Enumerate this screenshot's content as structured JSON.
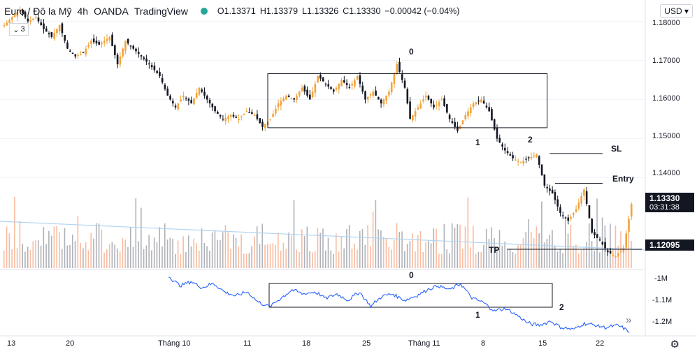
{
  "header": {
    "symbol": "Euro / Đô la Mỹ",
    "interval": "4h",
    "broker": "OANDA",
    "platform": "TradingView",
    "open": "O1.13371",
    "high": "H1.13379",
    "low": "L1.13326",
    "close": "C1.13330",
    "change": "−0.00042 (−0.04%)",
    "indicator_count": "3",
    "currency": "USD",
    "currency_caret": "▾"
  },
  "colors": {
    "up": "#f2a33a",
    "down": "#131722",
    "indicator": "#2962ff",
    "volume_up": "#f4a582",
    "volume_down": "#9598a1",
    "ma": "#b3d4f0",
    "price_tag": "#131722"
  },
  "price_axis": {
    "labels": [
      "1.18000",
      "1.17000",
      "1.16000",
      "1.15000",
      "1.14000"
    ],
    "last_price": "1.13330",
    "countdown": "03:31:38",
    "tp_price": "1.12095"
  },
  "indicator_axis": {
    "labels": [
      "-1M",
      "-1.1M",
      "-1.2M"
    ]
  },
  "time_axis": {
    "labels": [
      "13",
      "20",
      "Tháng 10",
      "11",
      "18",
      "25",
      "Tháng 11",
      "8",
      "15",
      "22"
    ]
  },
  "annotations": {
    "price_0": "0",
    "price_1": "1",
    "price_2": "2",
    "sl": "SL",
    "entry": "Entry",
    "tp": "TP",
    "ind_0": "0",
    "ind_1": "1",
    "ind_2": "2"
  },
  "chart_data": {
    "type": "candlestick",
    "title": "Euro / Đô la Mỹ · 4h · OANDA",
    "ylim": [
      1.118,
      1.184
    ],
    "levels": {
      "sl": 1.1462,
      "entry": 1.1386,
      "tp": 1.121,
      "box_top": 1.1666,
      "box_bottom": 1.1528
    },
    "waypoints": [
      [
        0,
        1.179
      ],
      [
        3,
        1.181
      ],
      [
        6,
        1.183
      ],
      [
        9,
        1.18
      ],
      [
        12,
        1.181
      ],
      [
        15,
        1.178
      ],
      [
        18,
        1.176
      ],
      [
        21,
        1.179
      ],
      [
        24,
        1.173
      ],
      [
        27,
        1.171
      ],
      [
        30,
        1.172
      ],
      [
        33,
        1.175
      ],
      [
        36,
        1.174
      ],
      [
        40,
        1.176
      ],
      [
        43,
        1.169
      ],
      [
        46,
        1.175
      ],
      [
        49,
        1.173
      ],
      [
        52,
        1.171
      ],
      [
        55,
        1.169
      ],
      [
        59,
        1.166
      ],
      [
        62,
        1.161
      ],
      [
        65,
        1.158
      ],
      [
        68,
        1.161
      ],
      [
        71,
        1.159
      ],
      [
        74,
        1.163
      ],
      [
        77,
        1.16
      ],
      [
        80,
        1.157
      ],
      [
        83,
        1.155
      ],
      [
        86,
        1.156
      ],
      [
        89,
        1.155
      ],
      [
        92,
        1.157
      ],
      [
        95,
        1.156
      ],
      [
        98,
        1.153
      ],
      [
        101,
        1.155
      ],
      [
        104,
        1.159
      ],
      [
        107,
        1.161
      ],
      [
        110,
        1.16
      ],
      [
        113,
        1.163
      ],
      [
        116,
        1.16
      ],
      [
        119,
        1.166
      ],
      [
        122,
        1.164
      ],
      [
        125,
        1.162
      ],
      [
        128,
        1.165
      ],
      [
        131,
        1.163
      ],
      [
        134,
        1.166
      ],
      [
        137,
        1.16
      ],
      [
        140,
        1.162
      ],
      [
        143,
        1.159
      ],
      [
        146,
        1.162
      ],
      [
        149,
        1.169
      ],
      [
        152,
        1.163
      ],
      [
        154,
        1.155
      ],
      [
        157,
        1.158
      ],
      [
        160,
        1.161
      ],
      [
        163,
        1.158
      ],
      [
        166,
        1.16
      ],
      [
        169,
        1.155
      ],
      [
        172,
        1.152
      ],
      [
        175,
        1.156
      ],
      [
        178,
        1.159
      ],
      [
        181,
        1.16
      ],
      [
        184,
        1.157
      ],
      [
        187,
        1.15
      ],
      [
        190,
        1.147
      ],
      [
        193,
        1.145
      ],
      [
        196,
        1.144
      ],
      [
        199,
        1.145
      ],
      [
        202,
        1.146
      ],
      [
        205,
        1.138
      ],
      [
        208,
        1.136
      ],
      [
        211,
        1.131
      ],
      [
        214,
        1.129
      ],
      [
        217,
        1.132
      ],
      [
        220,
        1.137
      ],
      [
        223,
        1.126
      ],
      [
        226,
        1.124
      ],
      [
        229,
        1.121
      ],
      [
        232,
        1.12
      ],
      [
        235,
        1.122
      ],
      [
        238,
        1.1333
      ]
    ],
    "indicator": {
      "name": "",
      "ylim": [
        -1.26,
        -0.96
      ],
      "waypoints": [
        [
          0,
          -0.985
        ],
        [
          4,
          -1.03
        ],
        [
          8,
          -1.01
        ],
        [
          12,
          -1.04
        ],
        [
          16,
          -1.02
        ],
        [
          20,
          -1.06
        ],
        [
          24,
          -1.08
        ],
        [
          28,
          -1.06
        ],
        [
          32,
          -1.11
        ],
        [
          36,
          -1.13
        ],
        [
          40,
          -1.09
        ],
        [
          44,
          -1.05
        ],
        [
          48,
          -1.07
        ],
        [
          52,
          -1.06
        ],
        [
          56,
          -1.09
        ],
        [
          60,
          -1.07
        ],
        [
          64,
          -1.1
        ],
        [
          68,
          -1.06
        ],
        [
          72,
          -1.13
        ],
        [
          76,
          -1.08
        ],
        [
          80,
          -1.07
        ],
        [
          84,
          -1.1
        ],
        [
          88,
          -1.08
        ],
        [
          92,
          -1.05
        ],
        [
          96,
          -1.03
        ],
        [
          100,
          -1.05
        ],
        [
          104,
          -1.02
        ],
        [
          108,
          -1.09
        ],
        [
          112,
          -1.11
        ],
        [
          116,
          -1.15
        ],
        [
          120,
          -1.14
        ],
        [
          124,
          -1.17
        ],
        [
          128,
          -1.21
        ],
        [
          132,
          -1.22
        ],
        [
          136,
          -1.2
        ],
        [
          140,
          -1.23
        ],
        [
          144,
          -1.24
        ],
        [
          148,
          -1.21
        ],
        [
          152,
          -1.22
        ],
        [
          156,
          -1.23
        ],
        [
          160,
          -1.22
        ],
        [
          164,
          -1.25
        ]
      ]
    },
    "volume_ma": [
      [
        0,
        0.72
      ],
      [
        1,
        0.22
      ]
    ]
  }
}
